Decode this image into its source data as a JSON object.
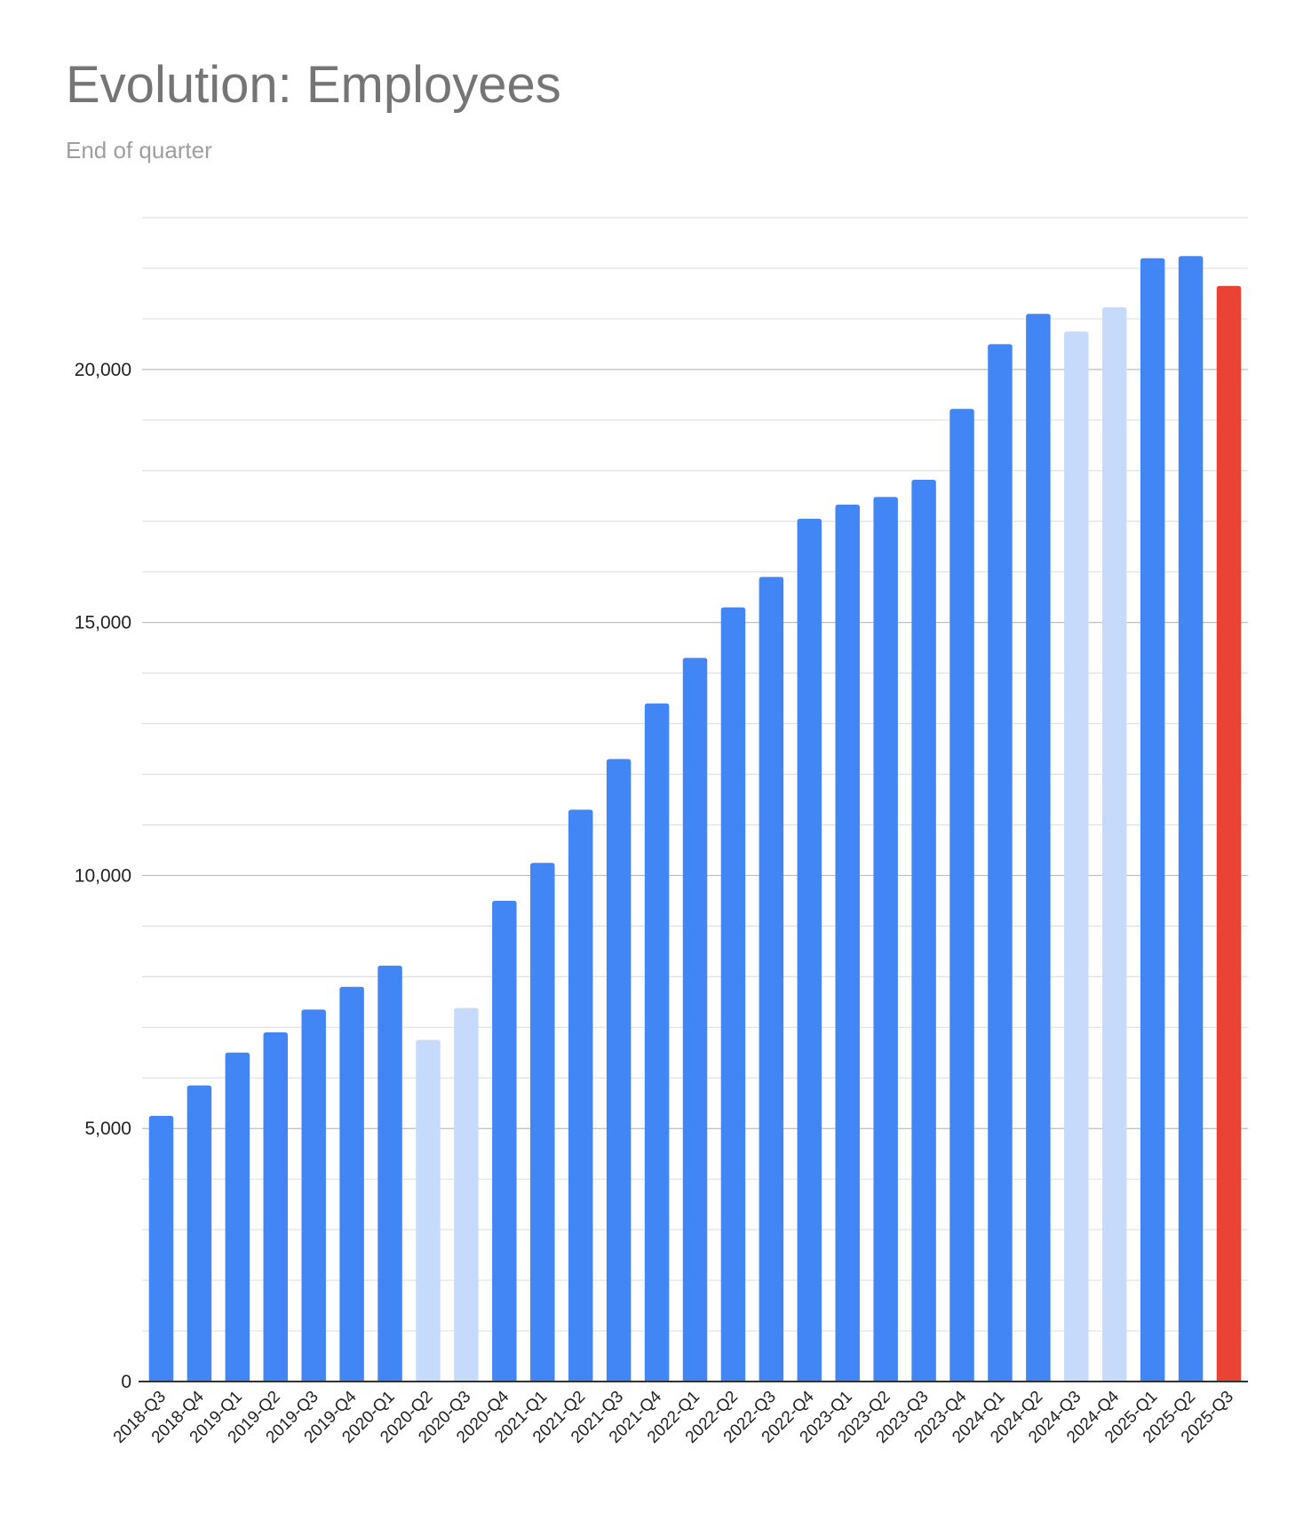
{
  "chart_data": {
    "type": "bar",
    "title": "Evolution: Employees",
    "subtitle": "End of quarter",
    "xlabel": "",
    "ylabel": "",
    "ylim": [
      0,
      23000
    ],
    "yticks": [
      0,
      5000,
      10000,
      15000,
      20000
    ],
    "ytick_labels": [
      "0",
      "5,000",
      "10,000",
      "15,000",
      "20,000"
    ],
    "grid": true,
    "legend": "none",
    "colors": {
      "actual": "#4285f4",
      "estimated": "#c6dafc",
      "latest": "#ea4335",
      "gridline_major": "#bdbdbd",
      "gridline_minor": "#e0e0e0",
      "axis": "#333333"
    },
    "categories": [
      "2018-Q3",
      "2018-Q4",
      "2019-Q1",
      "2019-Q2",
      "2019-Q3",
      "2019-Q4",
      "2020-Q1",
      "2020-Q2",
      "2020-Q3",
      "2020-Q4",
      "2021-Q1",
      "2021-Q2",
      "2021-Q3",
      "2021-Q4",
      "2022-Q1",
      "2022-Q2",
      "2022-Q3",
      "2022-Q4",
      "2023-Q1",
      "2023-Q2",
      "2023-Q3",
      "2023-Q4",
      "2024-Q1",
      "2024-Q2",
      "2024-Q3",
      "2024-Q4",
      "2025-Q1",
      "2025-Q2",
      "2025-Q3"
    ],
    "values": [
      5250,
      5850,
      6500,
      6900,
      7350,
      7800,
      8220,
      6750,
      7380,
      9500,
      10250,
      11300,
      12300,
      13400,
      14300,
      15300,
      15900,
      17050,
      17330,
      17480,
      17820,
      19220,
      20500,
      21100,
      20750,
      21230,
      22200,
      22240,
      21650
    ],
    "bar_status": [
      "actual",
      "actual",
      "actual",
      "actual",
      "actual",
      "actual",
      "actual",
      "estimated",
      "estimated",
      "actual",
      "actual",
      "actual",
      "actual",
      "actual",
      "actual",
      "actual",
      "actual",
      "actual",
      "actual",
      "actual",
      "actual",
      "actual",
      "actual",
      "actual",
      "estimated",
      "estimated",
      "actual",
      "actual",
      "latest"
    ]
  }
}
